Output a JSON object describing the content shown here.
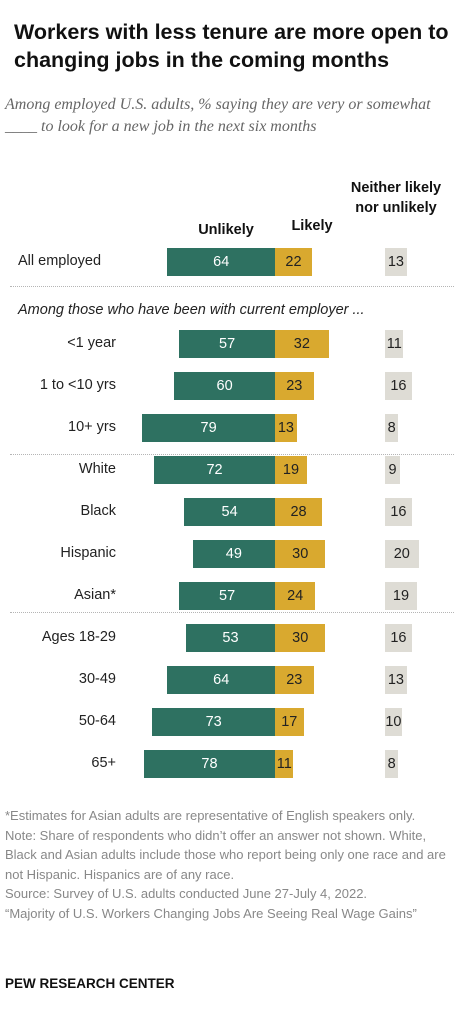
{
  "header": {
    "title": "Workers with less tenure are more open to changing jobs in the coming months",
    "subtitle": "Among employed U.S. adults, % saying they are very or somewhat ____ to look for a new job in the next six months"
  },
  "columns": {
    "unlikely": "Unlikely",
    "likely": "Likely",
    "neither": "Neither likely nor unlikely"
  },
  "group_label": "Among those who have been with current employer ...",
  "colors": {
    "unlikely": "#2e7161",
    "likely": "#d9a92f",
    "neither": "#dedcd5"
  },
  "chart_data": {
    "type": "bar",
    "stacked": "diverging",
    "categories": [
      "All employed",
      "<1 year",
      "1 to <10 yrs",
      "10+ yrs",
      "White",
      "Black",
      "Hispanic",
      "Asian*",
      "Ages 18-29",
      "30-49",
      "50-64",
      "65+"
    ],
    "series": [
      {
        "name": "Unlikely",
        "values": [
          64,
          57,
          60,
          79,
          72,
          54,
          49,
          57,
          53,
          64,
          73,
          78
        ]
      },
      {
        "name": "Likely",
        "values": [
          22,
          32,
          23,
          13,
          19,
          28,
          30,
          24,
          30,
          23,
          17,
          11
        ]
      },
      {
        "name": "Neither likely nor unlikely",
        "values": [
          13,
          11,
          16,
          8,
          9,
          16,
          20,
          19,
          16,
          13,
          10,
          8
        ]
      }
    ],
    "title": "Workers with less tenure are more open to changing jobs in the coming months",
    "xlabel": "",
    "ylabel": ""
  },
  "notes": {
    "asterisk": "*Estimates for Asian adults are representative of English speakers only.",
    "note": "Note: Share of respondents who didn’t offer an answer not shown. White, Black and Asian adults include those who report being only one race and are not Hispanic. Hispanics are of any race.",
    "source": "Source: Survey of U.S. adults conducted June 27-July 4, 2022.",
    "report": "“Majority of U.S. Workers Changing Jobs Are Seeing Real Wage Gains”"
  },
  "footer": "PEW RESEARCH CENTER"
}
